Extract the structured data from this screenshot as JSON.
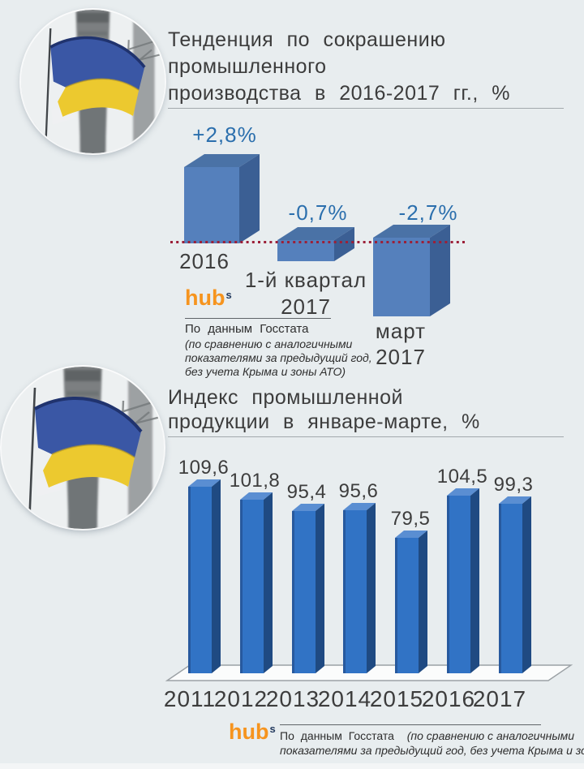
{
  "colors": {
    "background": "#e8edef",
    "accent_blue_label": "#2b6fad",
    "hub_orange": "#f6941e",
    "dotted_zero_line": "#9c2038",
    "chart1_bar": {
      "front": "#5580bc",
      "top": "#4a72a6",
      "side": "#3b5f94"
    },
    "chart2_bar": {
      "front": "#3173c5",
      "edge": "#27599e",
      "side": "#1f4a82",
      "top": "#5a8ed2"
    },
    "flag_blue": "#3a57a5",
    "flag_yellow": "#ecc92f"
  },
  "branding": {
    "logo_text": "hub",
    "logo_sup": "s"
  },
  "section1": {
    "title_lines": [
      "Тенденция по сокрашению",
      "промышленного",
      "производства в 2016-2017 гг., %"
    ],
    "source_line": "По данным Госстата",
    "source_italic_lines": [
      "(по сравнению с аналогичными",
      "показателями за предыдущий год,",
      "без учета Крыма и зоны АТО)"
    ]
  },
  "section2": {
    "title_lines": [
      "Индекс промышленной",
      "продукции в январе-марте, %"
    ],
    "source_regular": "По данным Госстата",
    "source_italic_line1": "(по сравнению с аналогичными",
    "source_italic_line2": "показателями за предыдущий год, без учета Крыма и зоны АТО)"
  },
  "chart_data": [
    {
      "type": "bar",
      "style": "3d-column",
      "title": "Тенденция по сокрашению промышленного производства в 2016-2017 гг., %",
      "categories": [
        "2016",
        "1-й квартал 2017",
        "март 2017"
      ],
      "category_lines": [
        [
          "2016"
        ],
        [
          "1-й квартал",
          "2017"
        ],
        [
          "март",
          "2017"
        ]
      ],
      "values": [
        2.8,
        -0.7,
        -2.7
      ],
      "value_labels": [
        "+2,8%",
        "-0,7%",
        "-2,7%"
      ],
      "ylabel": "%",
      "baseline": 0,
      "annotations": "dotted red line marks zero baseline; bars above line positive, below negative",
      "legend": "none",
      "grid": "off"
    },
    {
      "type": "bar",
      "style": "3d-column",
      "title": "Индекс промышленной продукции в январе-марте, %",
      "categories": [
        "2011",
        "2012",
        "2013",
        "2014",
        "2015",
        "2016",
        "2017"
      ],
      "values": [
        109.6,
        101.8,
        95.4,
        95.6,
        79.5,
        104.5,
        99.3
      ],
      "value_labels": [
        "109,6",
        "101,8",
        "95,4",
        "95,6",
        "79,5",
        "104,5",
        "99,3"
      ],
      "ylabel": "%",
      "ylim": [
        0,
        115
      ],
      "legend": "none",
      "grid": "off"
    }
  ]
}
